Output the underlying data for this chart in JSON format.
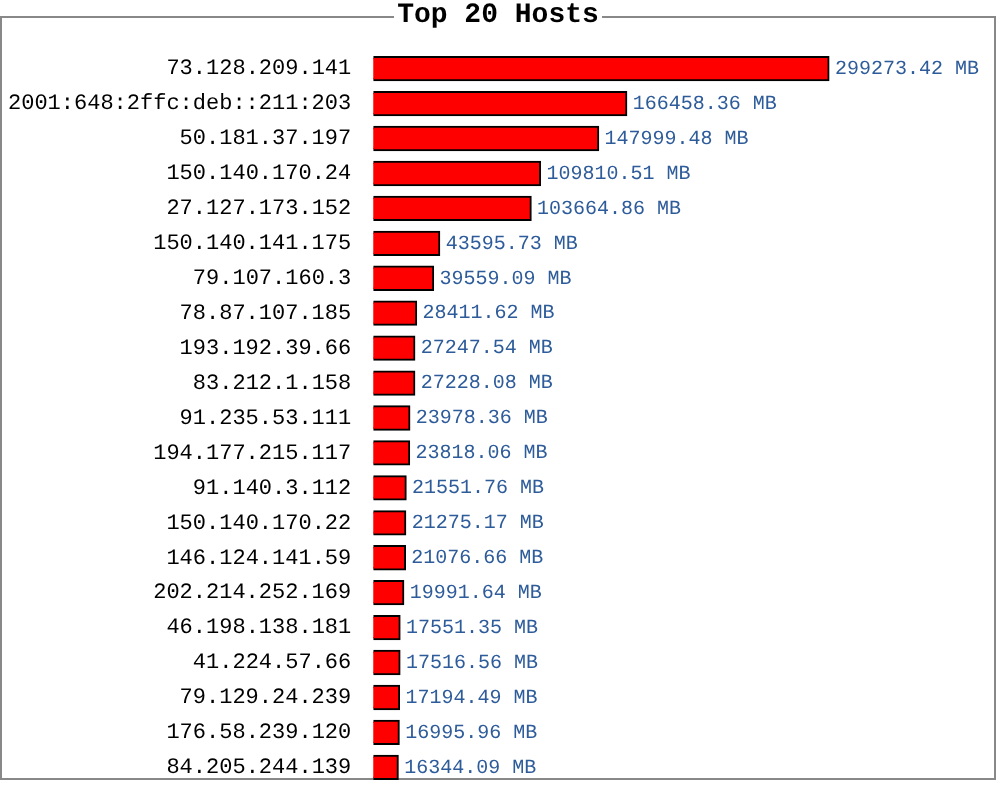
{
  "chart_data": {
    "type": "bar",
    "orientation": "horizontal",
    "title": "Top 20 Hosts",
    "color": "#ff0000",
    "categories": [
      "73.128.209.141",
      "2001:648:2ffc:deb::211:203",
      "50.181.37.197",
      "150.140.170.24",
      "27.127.173.152",
      "150.140.141.175",
      "79.107.160.3",
      "78.87.107.185",
      "193.192.39.66",
      "83.212.1.158",
      "91.235.53.111",
      "194.177.215.117",
      "91.140.3.112",
      "150.140.170.22",
      "146.124.141.59",
      "202.214.252.169",
      "46.198.138.181",
      "41.224.57.66",
      "79.129.24.239",
      "176.58.239.120",
      "84.205.244.139"
    ],
    "values": [
      299273.42,
      166458.36,
      147999.48,
      109810.51,
      103664.86,
      43595.73,
      39559.09,
      28411.62,
      27247.54,
      27228.08,
      23978.36,
      23818.06,
      21551.76,
      21275.17,
      21076.66,
      19991.64,
      17551.35,
      17516.56,
      17194.49,
      16995.96,
      16344.09
    ],
    "value_labels": [
      "299273.42 MB",
      "166458.36 MB",
      "147999.48 MB",
      "109810.51 MB",
      "103664.86 MB",
      "43595.73 MB",
      "39559.09 MB",
      "28411.62 MB",
      "27247.54 MB",
      "27228.08 MB",
      "23978.36 MB",
      "23818.06 MB",
      "21551.76 MB",
      "21275.17 MB",
      "21076.66 MB",
      "19991.64 MB",
      "17551.35 MB",
      "17516.56 MB",
      "17194.49 MB",
      "16995.96 MB",
      "16344.09 MB"
    ]
  }
}
